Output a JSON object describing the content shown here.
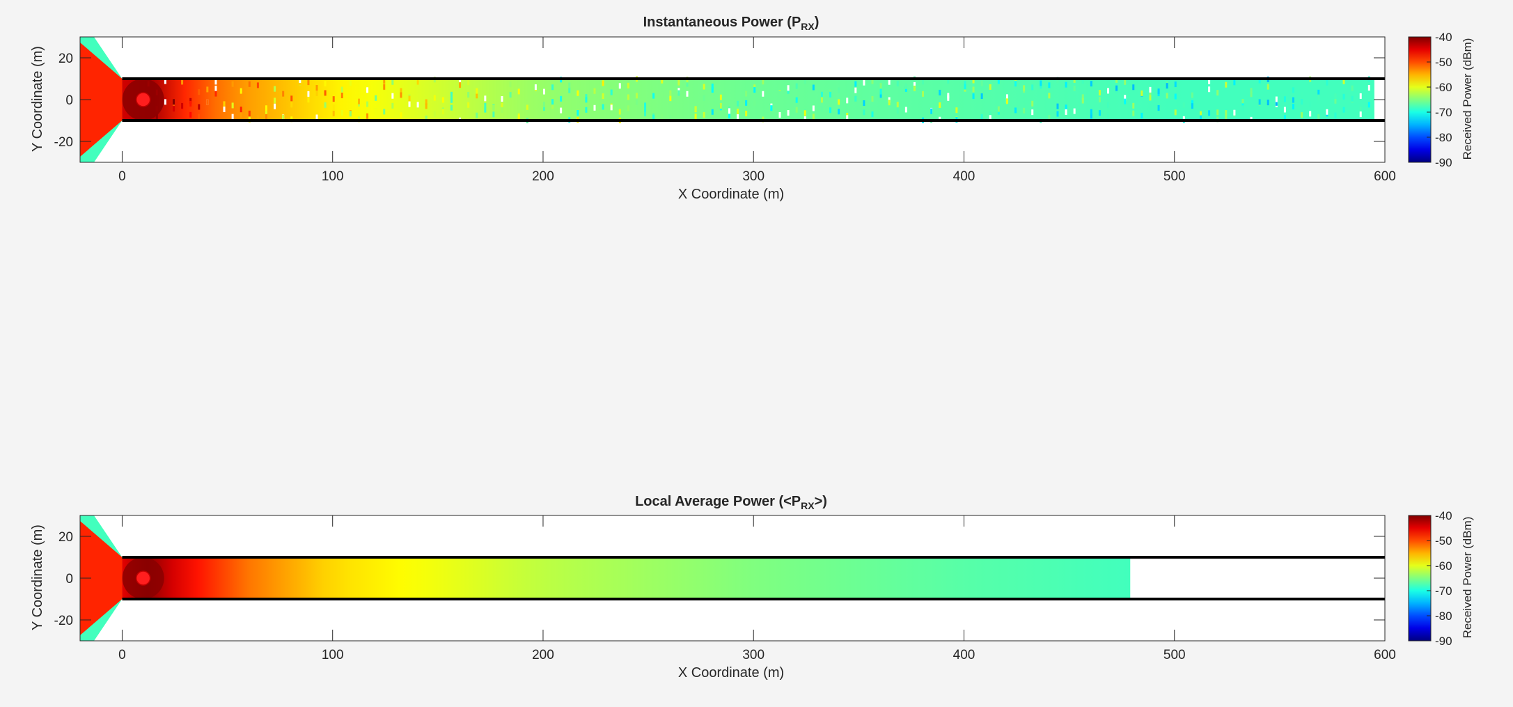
{
  "chart_data": [
    {
      "type": "heatmap",
      "title": "Instantaneous  Power  (P",
      "title_sub": "RX",
      "title_end": ")",
      "xlabel": "X Coordinate (m)",
      "ylabel": "Y Coordinate (m)",
      "xlim": [
        -20,
        600
      ],
      "ylim": [
        -30,
        30
      ],
      "xticks": [
        0,
        100,
        200,
        300,
        400,
        500,
        600
      ],
      "yticks": [
        -20,
        0,
        20
      ],
      "grid": false,
      "colorbar": {
        "label": "Received Power (dBm)",
        "range": [
          -90,
          -40
        ],
        "ticks": [
          -40,
          -50,
          -60,
          -70,
          -80,
          -90
        ],
        "colormap": "jet"
      },
      "tunnel": {
        "x_start": 0,
        "x_end": 600,
        "y_walls": [
          -10,
          10
        ]
      },
      "transmitter": {
        "x": 10,
        "y": 0
      },
      "coverage_end_x": 595,
      "profile": {
        "x": [
          0,
          10,
          25,
          50,
          100,
          200,
          300,
          400,
          500,
          595
        ],
        "power_dbm": [
          -44,
          -40,
          -47,
          -53,
          -58,
          -64,
          -66,
          -67,
          -68,
          -68
        ]
      }
    },
    {
      "type": "heatmap",
      "title": "Local  Average  Power  (<P",
      "title_sub": "RX",
      "title_end": ">)",
      "xlabel": "X Coordinate (m)",
      "ylabel": "Y Coordinate (m)",
      "xlim": [
        -20,
        600
      ],
      "ylim": [
        -30,
        30
      ],
      "xticks": [
        0,
        100,
        200,
        300,
        400,
        500,
        600
      ],
      "yticks": [
        -20,
        0,
        20
      ],
      "grid": false,
      "colorbar": {
        "label": "Received Power (dBm)",
        "range": [
          -90,
          -40
        ],
        "ticks": [
          -40,
          -50,
          -60,
          -70,
          -80,
          -90
        ],
        "colormap": "jet"
      },
      "tunnel": {
        "x_start": 0,
        "x_end": 600,
        "y_walls": [
          -10,
          10
        ]
      },
      "transmitter": {
        "x": 10,
        "y": 0
      },
      "coverage_end_x": 479,
      "profile": {
        "x": [
          0,
          10,
          30,
          60,
          100,
          200,
          300,
          400,
          479
        ],
        "power_dbm": [
          -45,
          -40,
          -46,
          -52,
          -57,
          -62,
          -65,
          -67,
          -68
        ]
      }
    }
  ]
}
